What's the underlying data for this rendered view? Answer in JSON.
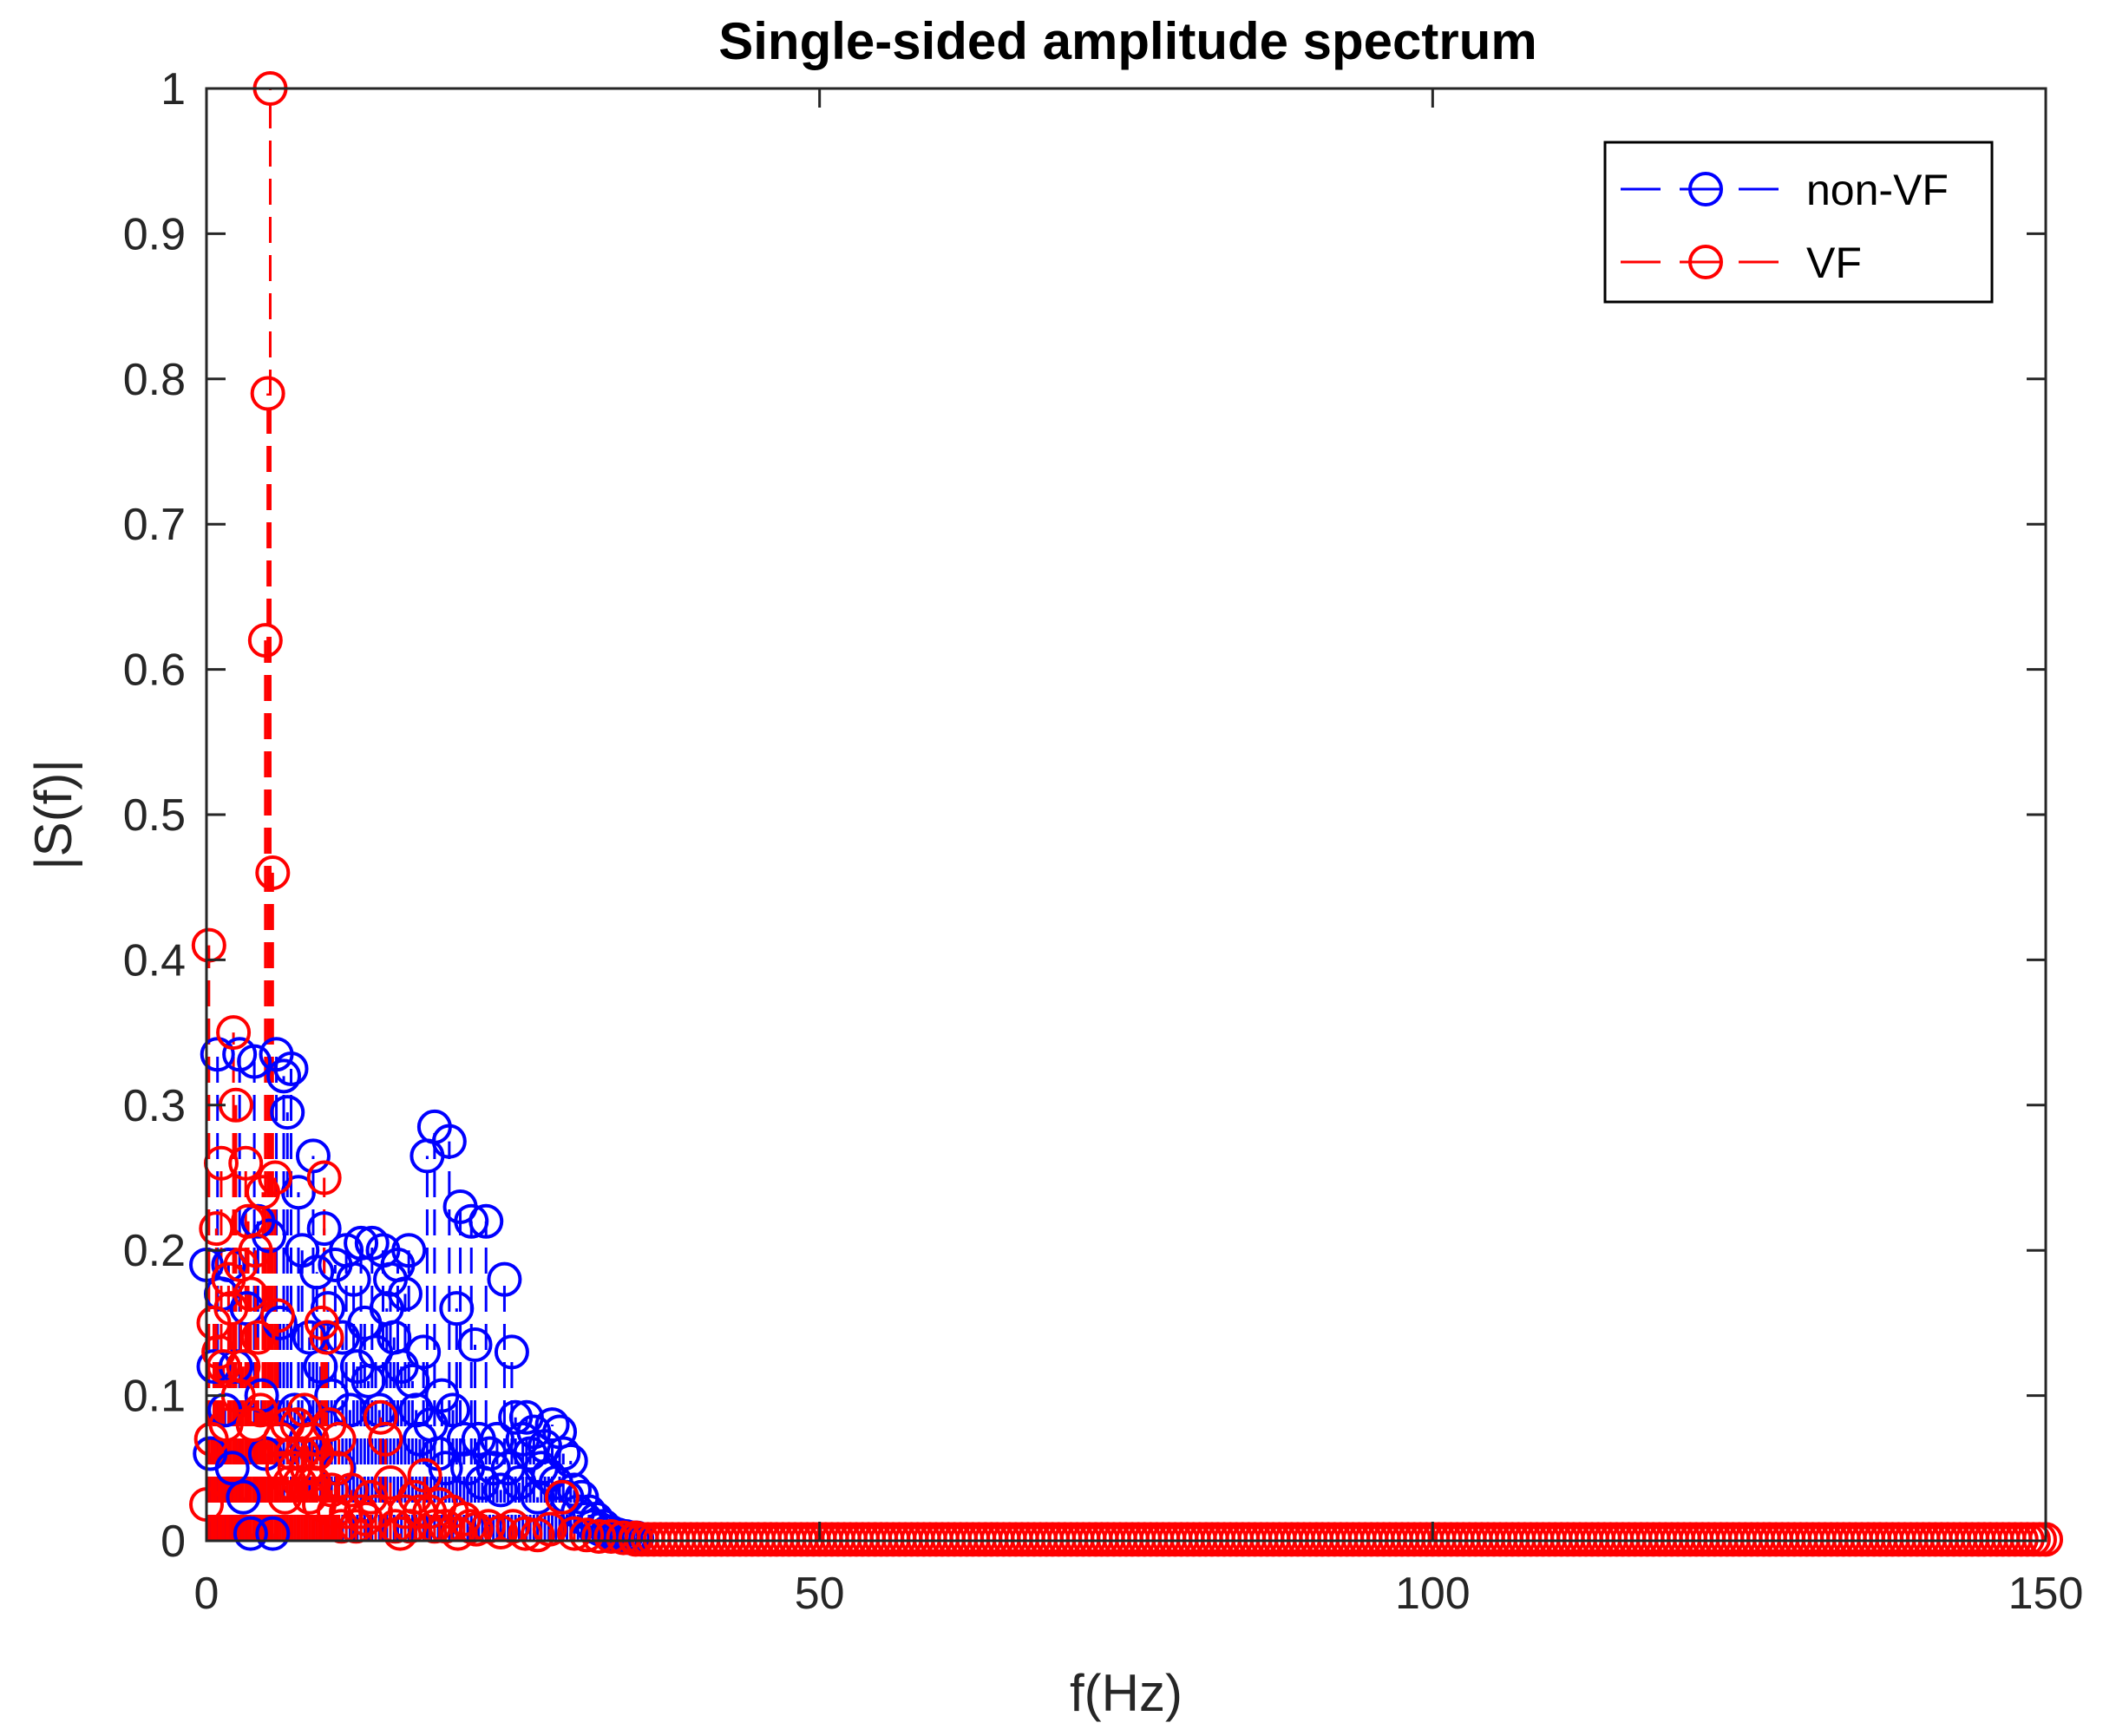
{
  "chart_data": {
    "type": "stem",
    "title": "Single-sided amplitude spectrum",
    "xlabel": "f(Hz)",
    "ylabel": "|S(f)|",
    "xlim": [
      0,
      150
    ],
    "ylim": [
      0,
      1
    ],
    "xticks": [
      0,
      50,
      100,
      150
    ],
    "yticks": [
      0,
      0.1,
      0.2,
      0.3,
      0.4,
      0.5,
      0.6,
      0.7,
      0.8,
      0.9,
      1
    ],
    "x_tick_labels": [
      "0",
      "50",
      "100",
      "150"
    ],
    "y_tick_labels": [
      "0",
      "0.1",
      "0.2",
      "0.3",
      "0.4",
      "0.5",
      "0.6",
      "0.7",
      "0.8",
      "0.9",
      "1"
    ],
    "grid": false,
    "legend_position": "top-right",
    "series": [
      {
        "name": "non-VF",
        "color": "#0000ff",
        "marker": "circle",
        "line_style": "dashed",
        "points": [
          [
            0.0,
            0.19
          ],
          [
            0.3,
            0.06
          ],
          [
            0.6,
            0.12
          ],
          [
            0.9,
            0.335
          ],
          [
            1.2,
            0.17
          ],
          [
            1.5,
            0.09
          ],
          [
            1.8,
            0.19
          ],
          [
            2.1,
            0.05
          ],
          [
            2.4,
            0.12
          ],
          [
            2.7,
            0.335
          ],
          [
            3.0,
            0.03
          ],
          [
            3.3,
            0.16
          ],
          [
            3.6,
            0.005
          ],
          [
            3.9,
            0.33
          ],
          [
            4.2,
            0.22
          ],
          [
            4.5,
            0.1
          ],
          [
            4.8,
            0.06
          ],
          [
            5.1,
            0.21
          ],
          [
            5.4,
            0.005
          ],
          [
            5.7,
            0.335
          ],
          [
            6.0,
            0.15
          ],
          [
            6.3,
            0.32
          ],
          [
            6.6,
            0.295
          ],
          [
            6.9,
            0.325
          ],
          [
            7.2,
            0.09
          ],
          [
            7.5,
            0.24
          ],
          [
            7.8,
            0.2
          ],
          [
            8.1,
            0.07
          ],
          [
            8.4,
            0.14
          ],
          [
            8.7,
            0.265
          ],
          [
            9.0,
            0.185
          ],
          [
            9.3,
            0.12
          ],
          [
            9.6,
            0.215
          ],
          [
            9.9,
            0.16
          ],
          [
            10.2,
            0.1
          ],
          [
            10.5,
            0.19
          ],
          [
            10.8,
            0.05
          ],
          [
            11.1,
            0.14
          ],
          [
            11.4,
            0.2
          ],
          [
            11.7,
            0.09
          ],
          [
            12.0,
            0.18
          ],
          [
            12.3,
            0.12
          ],
          [
            12.6,
            0.205
          ],
          [
            12.9,
            0.15
          ],
          [
            13.2,
            0.11
          ],
          [
            13.5,
            0.205
          ],
          [
            13.8,
            0.13
          ],
          [
            14.1,
            0.09
          ],
          [
            14.4,
            0.2
          ],
          [
            14.7,
            0.16
          ],
          [
            15.0,
            0.18
          ],
          [
            15.3,
            0.14
          ],
          [
            15.6,
            0.19
          ],
          [
            15.9,
            0.12
          ],
          [
            16.2,
            0.17
          ],
          [
            16.5,
            0.2
          ],
          [
            16.8,
            0.11
          ],
          [
            17.1,
            0.09
          ],
          [
            17.4,
            0.07
          ],
          [
            17.7,
            0.13
          ],
          [
            18.0,
            0.265
          ],
          [
            18.3,
            0.08
          ],
          [
            18.6,
            0.285
          ],
          [
            18.9,
            0.06
          ],
          [
            19.2,
            0.1
          ],
          [
            19.5,
            0.05
          ],
          [
            19.8,
            0.275
          ],
          [
            20.1,
            0.09
          ],
          [
            20.4,
            0.16
          ],
          [
            20.7,
            0.23
          ],
          [
            21.0,
            0.07
          ],
          [
            21.3,
            0.05
          ],
          [
            21.6,
            0.22
          ],
          [
            21.9,
            0.135
          ],
          [
            22.2,
            0.07
          ],
          [
            22.5,
            0.04
          ],
          [
            22.8,
            0.22
          ],
          [
            23.1,
            0.06
          ],
          [
            23.4,
            0.05
          ],
          [
            23.7,
            0.07
          ],
          [
            24.0,
            0.035
          ],
          [
            24.3,
            0.18
          ],
          [
            24.6,
            0.05
          ],
          [
            24.9,
            0.13
          ],
          [
            25.2,
            0.085
          ],
          [
            25.5,
            0.04
          ],
          [
            25.8,
            0.07
          ],
          [
            26.1,
            0.085
          ],
          [
            26.4,
            0.06
          ],
          [
            26.7,
            0.075
          ],
          [
            27.0,
            0.03
          ],
          [
            27.3,
            0.05
          ],
          [
            27.6,
            0.065
          ],
          [
            27.9,
            0.045
          ],
          [
            28.2,
            0.08
          ],
          [
            28.5,
            0.04
          ],
          [
            28.8,
            0.075
          ],
          [
            29.1,
            0.06
          ],
          [
            29.4,
            0.03
          ],
          [
            29.7,
            0.055
          ],
          [
            30.0,
            0.035
          ],
          [
            30.3,
            0.02
          ],
          [
            30.6,
            0.03
          ],
          [
            30.9,
            0.015
          ],
          [
            31.2,
            0.02
          ],
          [
            31.5,
            0.01
          ],
          [
            31.8,
            0.015
          ],
          [
            32.1,
            0.008
          ],
          [
            32.4,
            0.01
          ],
          [
            32.7,
            0.006
          ],
          [
            33.0,
            0.006
          ],
          [
            33.3,
            0.004
          ],
          [
            33.6,
            0.004
          ],
          [
            33.9,
            0.003
          ],
          [
            34.2,
            0.003
          ],
          [
            34.5,
            0.002
          ],
          [
            34.8,
            0.002
          ],
          [
            35.1,
            0.002
          ]
        ]
      },
      {
        "name": "VF",
        "color": "#ff0000",
        "marker": "circle",
        "line_style": "dashed",
        "points": [
          [
            0.0,
            0.025
          ],
          [
            0.2,
            0.41
          ],
          [
            0.4,
            0.07
          ],
          [
            0.6,
            0.15
          ],
          [
            0.8,
            0.215
          ],
          [
            1.0,
            0.13
          ],
          [
            1.2,
            0.26
          ],
          [
            1.4,
            0.12
          ],
          [
            1.6,
            0.08
          ],
          [
            1.8,
            0.18
          ],
          [
            2.0,
            0.16
          ],
          [
            2.2,
            0.35
          ],
          [
            2.4,
            0.3
          ],
          [
            2.6,
            0.1
          ],
          [
            2.8,
            0.19
          ],
          [
            3.0,
            0.12
          ],
          [
            3.2,
            0.26
          ],
          [
            3.4,
            0.22
          ],
          [
            3.6,
            0.17
          ],
          [
            3.8,
            0.08
          ],
          [
            4.0,
            0.2
          ],
          [
            4.2,
            0.14
          ],
          [
            4.4,
            0.09
          ],
          [
            4.6,
            0.24
          ],
          [
            4.8,
            0.62
          ],
          [
            5.0,
            0.79
          ],
          [
            5.2,
            1.0
          ],
          [
            5.4,
            0.46
          ],
          [
            5.6,
            0.25
          ],
          [
            5.8,
            0.155
          ],
          [
            6.0,
            0.07
          ],
          [
            6.2,
            0.05
          ],
          [
            6.4,
            0.03
          ],
          [
            6.6,
            0.08
          ],
          [
            6.8,
            0.04
          ],
          [
            7.0,
            0.06
          ],
          [
            7.2,
            0.05
          ],
          [
            7.4,
            0.08
          ],
          [
            7.6,
            0.04
          ],
          [
            7.8,
            0.06
          ],
          [
            8.0,
            0.09
          ],
          [
            8.2,
            0.05
          ],
          [
            8.4,
            0.03
          ],
          [
            8.6,
            0.07
          ],
          [
            8.8,
            0.04
          ],
          [
            9.0,
            0.06
          ],
          [
            9.2,
            0.025
          ],
          [
            9.4,
            0.15
          ],
          [
            9.6,
            0.25
          ],
          [
            9.8,
            0.14
          ],
          [
            10.0,
            0.08
          ],
          [
            10.2,
            0.035
          ],
          [
            10.4,
            0.02
          ],
          [
            10.6,
            0.05
          ],
          [
            10.8,
            0.07
          ],
          [
            11.0,
            0.01
          ],
          [
            11.4,
            0.02
          ],
          [
            11.8,
            0.035
          ],
          [
            12.2,
            0.01
          ],
          [
            12.6,
            0.02
          ],
          [
            13.0,
            0.015
          ],
          [
            13.4,
            0.03
          ],
          [
            13.8,
            0.02
          ],
          [
            14.2,
            0.085
          ],
          [
            14.6,
            0.07
          ],
          [
            15.0,
            0.04
          ],
          [
            15.4,
            0.01
          ],
          [
            15.8,
            0.005
          ],
          [
            16.2,
            0.02
          ],
          [
            16.6,
            0.01
          ],
          [
            17.0,
            0.03
          ],
          [
            17.4,
            0.02
          ],
          [
            17.8,
            0.045
          ],
          [
            18.2,
            0.02
          ],
          [
            18.6,
            0.01
          ],
          [
            19.0,
            0.025
          ],
          [
            19.5,
            0.01
          ],
          [
            20.0,
            0.02
          ],
          [
            20.5,
            0.005
          ],
          [
            21.0,
            0.015
          ],
          [
            21.5,
            0.01
          ],
          [
            22.0,
            0.008
          ],
          [
            23.0,
            0.01
          ],
          [
            24.0,
            0.006
          ],
          [
            25.0,
            0.01
          ],
          [
            26.0,
            0.005
          ],
          [
            27.0,
            0.004
          ],
          [
            28.0,
            0.008
          ],
          [
            29.0,
            0.03
          ],
          [
            30.0,
            0.005
          ],
          [
            31.0,
            0.004
          ],
          [
            32.0,
            0.003
          ],
          [
            33.0,
            0.003
          ],
          [
            34.0,
            0.002
          ],
          [
            35.0,
            0.002
          ]
        ]
      }
    ],
    "floor_series": {
      "x_start": 35,
      "x_end": 150,
      "x_step": 0.5,
      "value": 0.001
    }
  }
}
